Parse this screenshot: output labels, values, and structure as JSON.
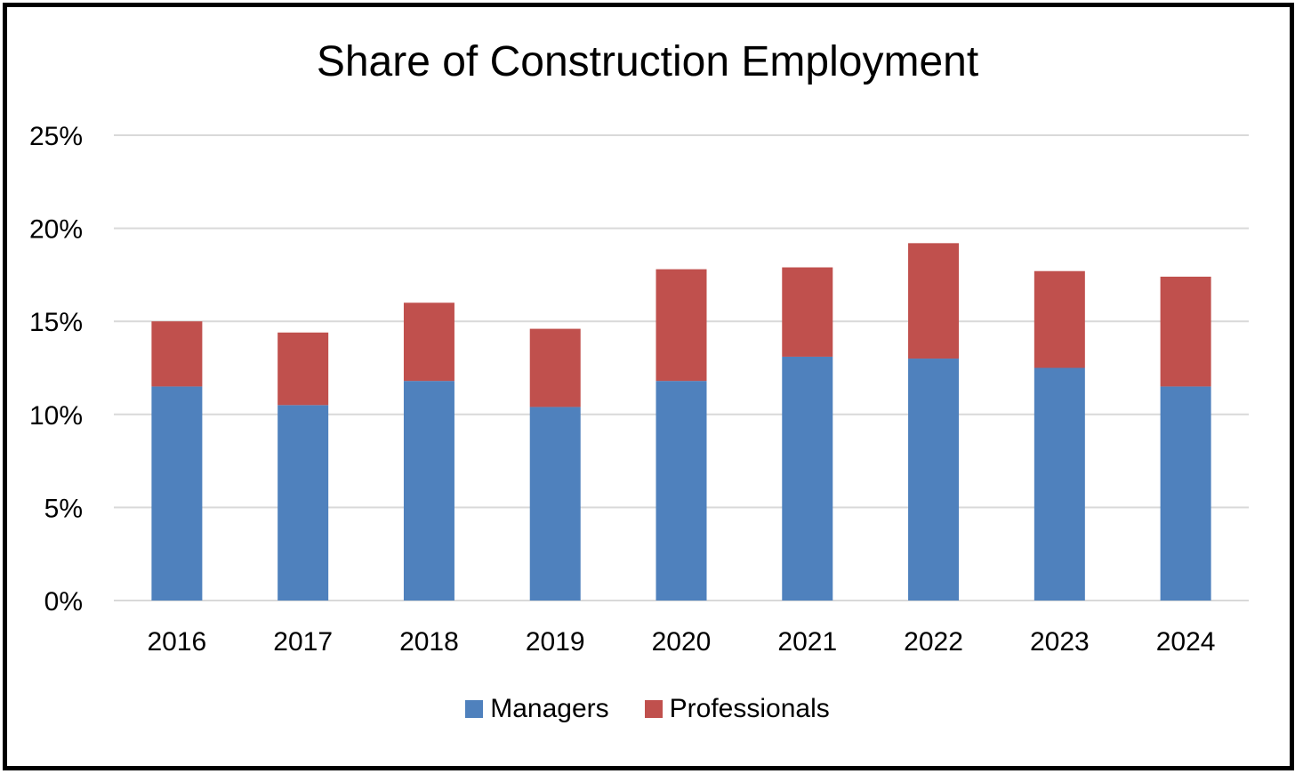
{
  "chart_data": {
    "type": "bar",
    "stacked": true,
    "title": "Share of Construction Employment",
    "xlabel": "",
    "ylabel": "",
    "categories": [
      "2016",
      "2017",
      "2018",
      "2019",
      "2020",
      "2021",
      "2022",
      "2023",
      "2024"
    ],
    "series": [
      {
        "name": "Managers",
        "color": "#4F81BD",
        "values": [
          11.5,
          10.5,
          11.8,
          10.4,
          11.8,
          13.1,
          13.0,
          12.5,
          11.5
        ]
      },
      {
        "name": "Professionals",
        "color": "#C0504D",
        "values": [
          3.5,
          3.9,
          4.2,
          4.2,
          6.0,
          4.8,
          6.2,
          5.2,
          5.9
        ]
      }
    ],
    "ylim": [
      0,
      25
    ],
    "yticks": [
      "0%",
      "5%",
      "10%",
      "15%",
      "20%",
      "25%"
    ],
    "grid": true,
    "legend_position": "bottom"
  }
}
